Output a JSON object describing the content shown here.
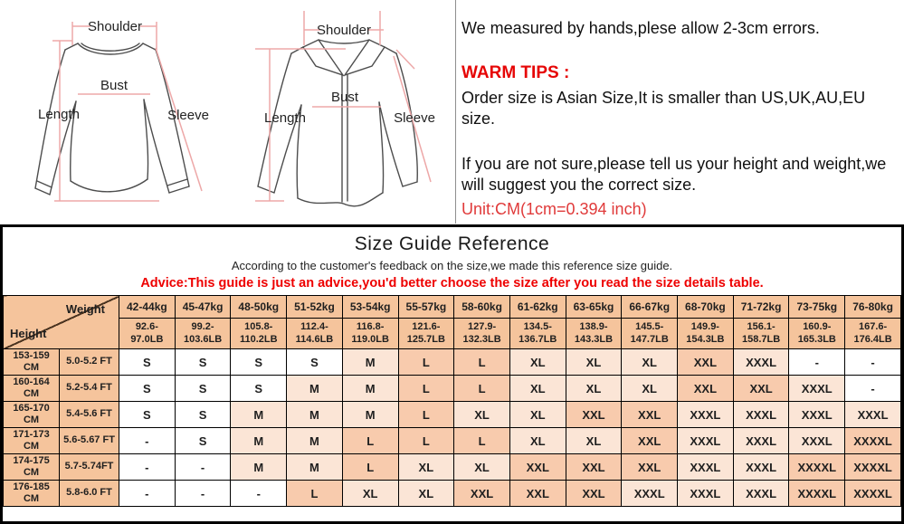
{
  "diagrams": {
    "left": {
      "name": "round-neck long sleeve top",
      "labels": {
        "shoulder": "Shoulder",
        "bust": "Bust",
        "length": "Length",
        "sleeve": "Sleeve"
      }
    },
    "right": {
      "name": "collared button shirt",
      "labels": {
        "shoulder": "Shoulder",
        "bust": "Bust",
        "length": "Length",
        "sleeve": "Sleeve"
      }
    }
  },
  "tips": {
    "line1": "We measured by hands,plese allow 2-3cm errors.",
    "warm_heading": "WARM TIPS :",
    "line2": "Order size is Asian Size,It is smaller than US,UK,AU,EU size.",
    "line3": "If you are not sure,please tell us your height and weight,we will suggest you the correct size.",
    "unit_note": "Unit:CM(1cm=0.394 inch)"
  },
  "size_table": {
    "title": "Size Guide Reference",
    "subtitle": "According to the customer's feedback on the size,we made this reference size guide.",
    "advice": "Advice:This guide is just an advice,you'd better choose the size after you read the size details table.",
    "corner": {
      "weight_label": "Weight",
      "height_label": "Height"
    },
    "weight_columns_kg": [
      "42-44kg",
      "45-47kg",
      "48-50kg",
      "51-52kg",
      "53-54kg",
      "55-57kg",
      "58-60kg",
      "61-62kg",
      "63-65kg",
      "66-67kg",
      "68-70kg",
      "71-72kg",
      "73-75kg",
      "76-80kg"
    ],
    "weight_columns_lb": [
      "92.6-97.0LB",
      "99.2-103.6LB",
      "105.8-110.2LB",
      "112.4-114.6LB",
      "116.8-119.0LB",
      "121.6-125.7LB",
      "127.9-132.3LB",
      "134.5-136.7LB",
      "138.9-143.3LB",
      "145.5-147.7LB",
      "149.9-154.3LB",
      "156.1-158.7LB",
      "160.9-165.3LB",
      "167.6-176.4LB"
    ],
    "rows": [
      {
        "height_cm": "153-159 CM",
        "height_ft": "5.0-5.2 FT",
        "sizes": [
          "S",
          "S",
          "S",
          "S",
          "M",
          "L",
          "L",
          "XL",
          "XL",
          "XL",
          "XXL",
          "XXXL",
          "-",
          "-"
        ]
      },
      {
        "height_cm": "160-164 CM",
        "height_ft": "5.2-5.4 FT",
        "sizes": [
          "S",
          "S",
          "S",
          "M",
          "M",
          "L",
          "L",
          "XL",
          "XL",
          "XL",
          "XXL",
          "XXL",
          "XXXL",
          "-"
        ]
      },
      {
        "height_cm": "165-170 CM",
        "height_ft": "5.4-5.6 FT",
        "sizes": [
          "S",
          "S",
          "M",
          "M",
          "M",
          "L",
          "XL",
          "XL",
          "XXL",
          "XXL",
          "XXXL",
          "XXXL",
          "XXXL",
          "XXXL"
        ]
      },
      {
        "height_cm": "171-173 CM",
        "height_ft": "5.6-5.67 FT",
        "sizes": [
          "-",
          "S",
          "M",
          "M",
          "L",
          "L",
          "L",
          "XL",
          "XL",
          "XXL",
          "XXXL",
          "XXXL",
          "XXXL",
          "XXXXL"
        ]
      },
      {
        "height_cm": "174-175 CM",
        "height_ft": "5.7-5.74FT",
        "sizes": [
          "-",
          "-",
          "M",
          "M",
          "L",
          "XL",
          "XL",
          "XXL",
          "XXL",
          "XXL",
          "XXXL",
          "XXXL",
          "XXXXL",
          "XXXXL"
        ]
      },
      {
        "height_cm": "176-185 CM",
        "height_ft": "5.8-6.0 FT",
        "sizes": [
          "-",
          "-",
          "-",
          "L",
          "XL",
          "XL",
          "XXL",
          "XXL",
          "XXL",
          "XXXL",
          "XXXL",
          "XXXL",
          "XXXXL",
          "XXXXL"
        ]
      }
    ],
    "shade_map": {
      "S": "w",
      "-": "w",
      "M": "l",
      "XL": "l",
      "XXXL": "l",
      "L": "d",
      "XXL": "d",
      "XXXXL": "d"
    },
    "colors": {
      "header_bg": "#f5c49c",
      "light_cell": "#fbe5d6",
      "dark_cell": "#f8cbad",
      "white_cell": "#ffffff",
      "advice_red": "#ee0000",
      "warm_red": "#e60505",
      "unit_red": "#e03a3a"
    }
  }
}
